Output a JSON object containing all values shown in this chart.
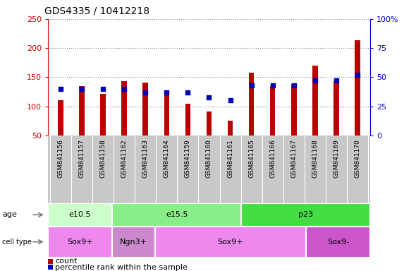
{
  "title": "GDS4335 / 10412218",
  "samples": [
    "GSM841156",
    "GSM841157",
    "GSM841158",
    "GSM841162",
    "GSM841163",
    "GSM841164",
    "GSM841159",
    "GSM841160",
    "GSM841161",
    "GSM841165",
    "GSM841166",
    "GSM841167",
    "GSM841168",
    "GSM841169",
    "GSM841170"
  ],
  "counts": [
    110,
    135,
    122,
    143,
    141,
    120,
    105,
    91,
    75,
    158,
    135,
    138,
    170,
    143,
    213
  ],
  "percentiles": [
    40,
    40,
    40,
    40,
    37,
    37,
    37,
    33,
    30,
    43,
    43,
    43,
    47,
    47,
    52
  ],
  "ylim_left": [
    50,
    250
  ],
  "ylim_right": [
    0,
    100
  ],
  "yticks_left": [
    50,
    100,
    150,
    200,
    250
  ],
  "yticks_right": [
    0,
    25,
    50,
    75,
    100
  ],
  "ytick_labels_right": [
    "0",
    "25",
    "50",
    "75",
    "100%"
  ],
  "bar_color": "#bb0000",
  "dot_color": "#0000bb",
  "grid_color": "#888888",
  "bg_color": "#ffffff",
  "tick_area_color": "#c8c8c8",
  "age_groups": [
    {
      "label": "e10.5",
      "start": 0,
      "end": 3,
      "color": "#ccffcc"
    },
    {
      "label": "e15.5",
      "start": 3,
      "end": 9,
      "color": "#88ee88"
    },
    {
      "label": "p23",
      "start": 9,
      "end": 15,
      "color": "#44dd44"
    }
  ],
  "cell_groups": [
    {
      "label": "Sox9+",
      "start": 0,
      "end": 3,
      "color": "#ee88ee"
    },
    {
      "label": "Ngn3+",
      "start": 3,
      "end": 5,
      "color": "#cc88cc"
    },
    {
      "label": "Sox9+",
      "start": 5,
      "end": 12,
      "color": "#ee88ee"
    },
    {
      "label": "Sox9-",
      "start": 12,
      "end": 15,
      "color": "#cc55cc"
    }
  ],
  "left_axis_color": "#cc0000",
  "right_axis_color": "#0000cc",
  "bar_width": 0.25,
  "figsize": [
    5.9,
    3.84
  ],
  "dpi": 100
}
